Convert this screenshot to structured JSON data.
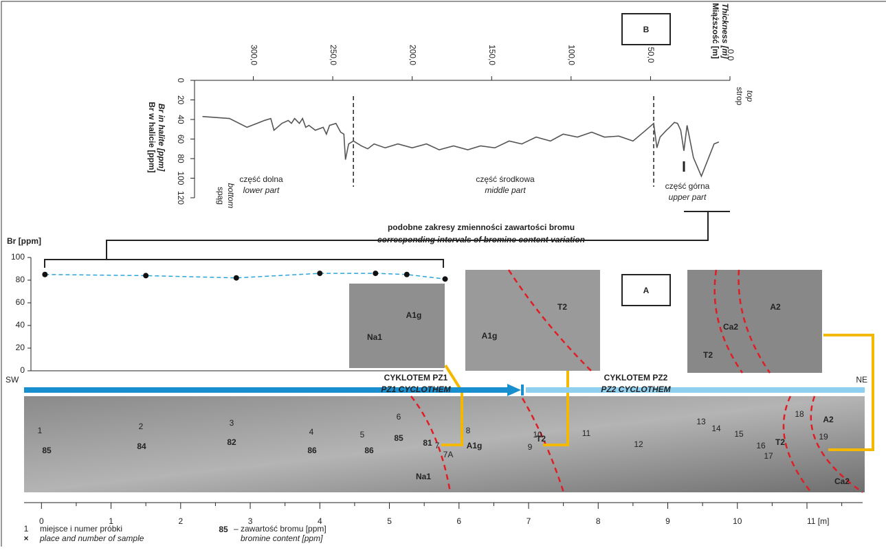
{
  "labels": {
    "panel_b": "B",
    "panel_a": "A",
    "similar_pl": "podobne zakresy zmienności zawartości bromu",
    "similar_en": "corresponding intervals of bromine content variation",
    "sw": "SW",
    "ne": "NE",
    "pz1_pl": "CYKLOTEM PZ1",
    "pz1_en": "PZ1 CYCLOTHEM",
    "pz2_pl": "CYKLOTEM PZ2",
    "pz2_en": "PZ2 CYCLOTHEM",
    "bottom_pl": "spąg",
    "bottom_en": "bottom",
    "top_pl": "strop",
    "top_en": "top",
    "lower_pl": "część dolna",
    "lower_en": "lower part",
    "middle_pl": "część środkowa",
    "middle_en": "middle part",
    "upper_pl": "część górna",
    "upper_en": "upper part"
  },
  "legend": {
    "sample_symbol": "1",
    "sample_cross": "×",
    "sample_pl": "miejsce i numer próbki",
    "sample_en": "place and number of sample",
    "br_symbol": "85",
    "br_pl": "– zawartość bromu [ppm]",
    "br_en": "bromine content [ppm]"
  },
  "chart_data": [
    {
      "type": "line",
      "xlabel": "Miąższość [m]",
      "xlabel_en": "Thickness [m]",
      "ylabel": "Br w halicie [ppm]",
      "ylabel_en": "Br in halite [ppm]",
      "xlim": [
        337,
        0
      ],
      "xticks": [
        {
          "value": 0,
          "label": "0,0"
        },
        {
          "value": 50,
          "label": "50,0"
        },
        {
          "value": 100,
          "label": "100,0"
        },
        {
          "value": 150,
          "label": "150,0"
        },
        {
          "value": 200,
          "label": "200,0"
        },
        {
          "value": 250,
          "label": "250,0"
        },
        {
          "value": 300,
          "label": "300,0"
        }
      ],
      "ylim": [
        0,
        120
      ],
      "yticks": [
        0,
        20,
        40,
        60,
        80,
        100,
        120
      ],
      "boundaries": [
        237,
        48
      ],
      "color": "#555555",
      "x": [
        332,
        315,
        304,
        293,
        289,
        287,
        282,
        278,
        276,
        274,
        271,
        269,
        267,
        265,
        261,
        256,
        254,
        252,
        248,
        245,
        243,
        242,
        240,
        237,
        232,
        228,
        224,
        217,
        209,
        200,
        191,
        183,
        174,
        165,
        157,
        148,
        139,
        131,
        122,
        113,
        105,
        96,
        87,
        79,
        70,
        61,
        53,
        48,
        46,
        44,
        40,
        38,
        35,
        33,
        31,
        29,
        27,
        23,
        18,
        10,
        7
      ],
      "values": [
        37,
        39,
        48,
        41,
        39,
        51,
        44,
        41,
        44,
        39,
        44,
        39,
        48,
        46,
        51,
        48,
        55,
        46,
        44,
        53,
        55,
        81,
        65,
        62,
        67,
        70,
        65,
        69,
        65,
        69,
        65,
        71,
        67,
        71,
        67,
        69,
        62,
        65,
        58,
        62,
        55,
        58,
        53,
        58,
        57,
        62,
        51,
        44,
        69,
        58,
        51,
        48,
        43,
        44,
        51,
        72,
        46,
        79,
        98,
        65,
        63
      ]
    },
    {
      "type": "line",
      "ylabel": "Br [ppm]",
      "ylim": [
        0,
        100
      ],
      "yticks": [
        0,
        20,
        40,
        60,
        80,
        100
      ],
      "color": "#29a3dc",
      "xlim": [
        -0.25,
        11.8
      ],
      "xticks": [
        0,
        1,
        2,
        3,
        4,
        5,
        6,
        7,
        8,
        9,
        10,
        {
          "value": 11,
          "label": "11 [m]"
        }
      ],
      "x": [
        0.05,
        1.5,
        2.8,
        4.0,
        4.8,
        5.25,
        5.8
      ],
      "values": [
        85,
        84,
        82,
        86,
        86,
        85,
        81
      ]
    }
  ],
  "photo": {
    "samples": [
      "1",
      "2",
      "3",
      "4",
      "5",
      "6",
      "7",
      "7A",
      "8",
      "9",
      "10",
      "11",
      "12",
      "13",
      "14",
      "15",
      "16",
      "17",
      "18",
      "19"
    ],
    "rocks": [
      "Na1",
      "A1g",
      "T2",
      "T2",
      "A2",
      "Ca2",
      "Na1",
      "A1g",
      "A1g",
      "T2",
      "A2",
      "Ca2",
      "T2"
    ]
  }
}
